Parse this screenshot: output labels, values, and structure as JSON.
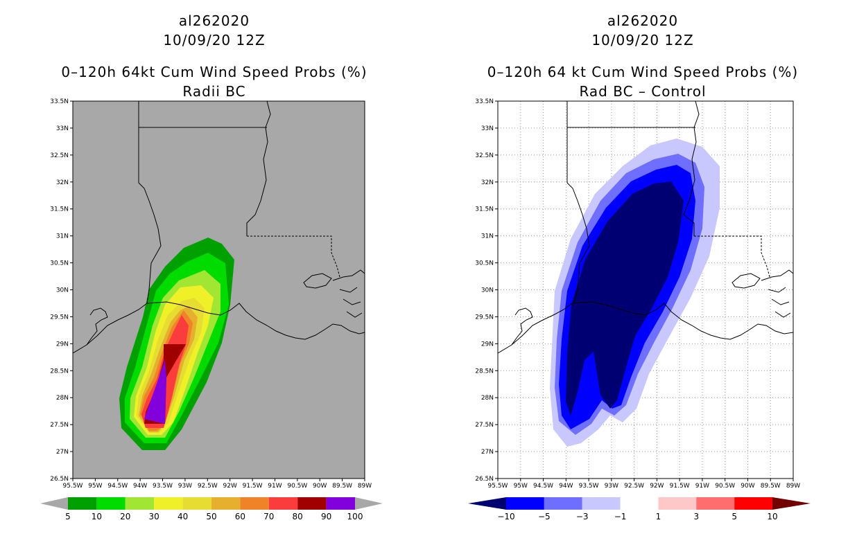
{
  "left": {
    "storm_id": "al262020",
    "datetime": "10/09/20 12Z",
    "product": "0–120h 64kt Cum Wind Speed Probs (%)",
    "subtitle": "Radii BC",
    "colorbar": {
      "labels": [
        "5",
        "10",
        "20",
        "30",
        "40",
        "50",
        "60",
        "70",
        "80",
        "90",
        "100"
      ],
      "colors": [
        "#00a000",
        "#00dc00",
        "#a0e632",
        "#f0f028",
        "#e6dc32",
        "#e6af2d",
        "#f08228",
        "#fa3c3c",
        "#a00000",
        "#8200dc"
      ]
    }
  },
  "right": {
    "storm_id": "al262020",
    "datetime": "10/09/20 12Z",
    "product": "0–120h 64 kt Cum Wind Speed Probs (%)",
    "subtitle": "Rad BC – Control",
    "colorbar": {
      "labels": [
        "−10",
        "−5",
        "−3",
        "−1",
        "1",
        "3",
        "5",
        "10"
      ],
      "colors": [
        "#000073",
        "#0000ff",
        "#6e6eff",
        "#c8c8ff",
        "#ffffff",
        "#ffc8c8",
        "#ff6e6e",
        "#ff0000",
        "#730000"
      ]
    }
  },
  "axes": {
    "lat_labels": [
      "33.5N",
      "33N",
      "32.5N",
      "32N",
      "31.5N",
      "31N",
      "30.5N",
      "30N",
      "29.5N",
      "29N",
      "28.5N",
      "28N",
      "27.5N",
      "27N",
      "26.5N"
    ],
    "lon_labels": [
      "95.5W",
      "95W",
      "94.5W",
      "94W",
      "93.5W",
      "93W",
      "92.5W",
      "92W",
      "91.5W",
      "91W",
      "90.5W",
      "90W",
      "89.5W",
      "89W"
    ],
    "lat_range": [
      26.5,
      33.5
    ],
    "lon_range": [
      -95.5,
      -89
    ]
  },
  "colors": {
    "land_bg": "#a8a8a8",
    "coast": "#000000"
  }
}
